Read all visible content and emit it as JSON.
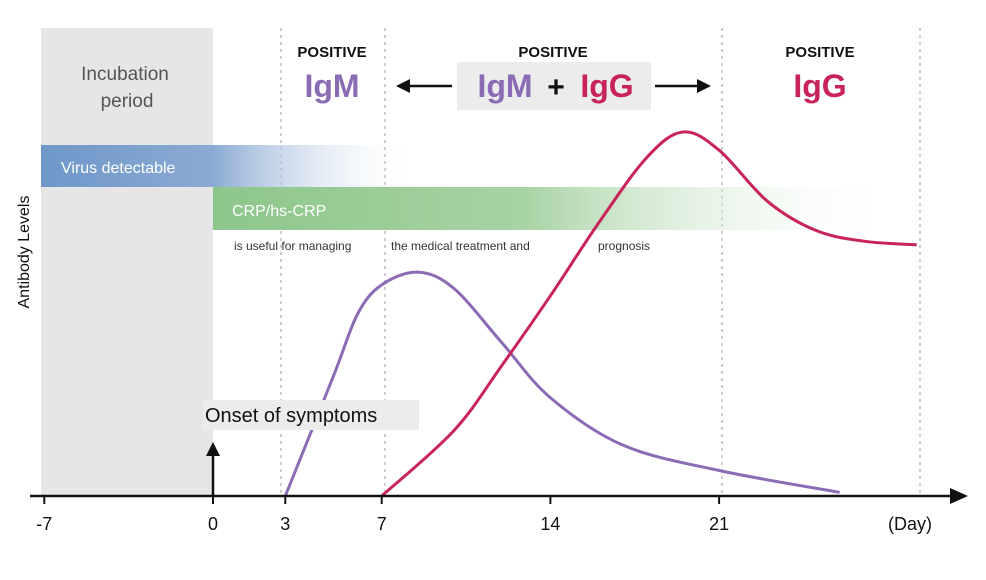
{
  "chart_data": {
    "type": "line",
    "ylabel": "Antibody Levels",
    "x_unit": "(Day)",
    "x_ticks": [
      -7,
      0,
      3,
      7,
      14,
      21
    ],
    "xlim": [
      -7,
      29.2
    ],
    "ylim": [
      0,
      100
    ],
    "series": [
      {
        "name": "IgM",
        "color": "#8b6bb4",
        "points": [
          [
            3,
            0
          ],
          [
            5,
            33
          ],
          [
            6,
            50
          ],
          [
            7,
            58
          ],
          [
            8.5,
            61.5
          ],
          [
            10,
            57
          ],
          [
            12,
            42
          ],
          [
            14,
            27
          ],
          [
            17,
            14
          ],
          [
            21,
            7
          ],
          [
            26,
            1
          ]
        ]
      },
      {
        "name": "IgG",
        "color": "#c8245a",
        "points": [
          [
            7,
            0
          ],
          [
            10,
            18
          ],
          [
            12,
            36
          ],
          [
            14,
            55
          ],
          [
            16,
            75
          ],
          [
            18,
            93
          ],
          [
            19.5,
            100
          ],
          [
            21,
            95
          ],
          [
            23,
            81
          ],
          [
            25,
            73
          ],
          [
            27,
            70
          ],
          [
            29.2,
            69
          ]
        ]
      }
    ],
    "phases": [
      {
        "top": "POSITIVE",
        "parts": [
          "IgM"
        ]
      },
      {
        "top": "POSITIVE",
        "parts": [
          "IgM",
          "+",
          "IgG"
        ]
      },
      {
        "top": "POSITIVE",
        "parts": [
          "IgG"
        ]
      }
    ],
    "incubation_label": [
      "Incubation",
      "period"
    ],
    "virus_band": "Virus detectable",
    "crp_band": "CRP/hs-CRP",
    "crp_note": [
      "is useful for managing",
      "the medical treatment and",
      "prognosis"
    ],
    "onset_label": "Onset of symptoms",
    "colors": {
      "igm": "#8b6bb4",
      "igg": "#c8245a",
      "virus": "#6f97c8",
      "crp": "#8dc68a",
      "incubation": "#e6e6e6"
    }
  }
}
